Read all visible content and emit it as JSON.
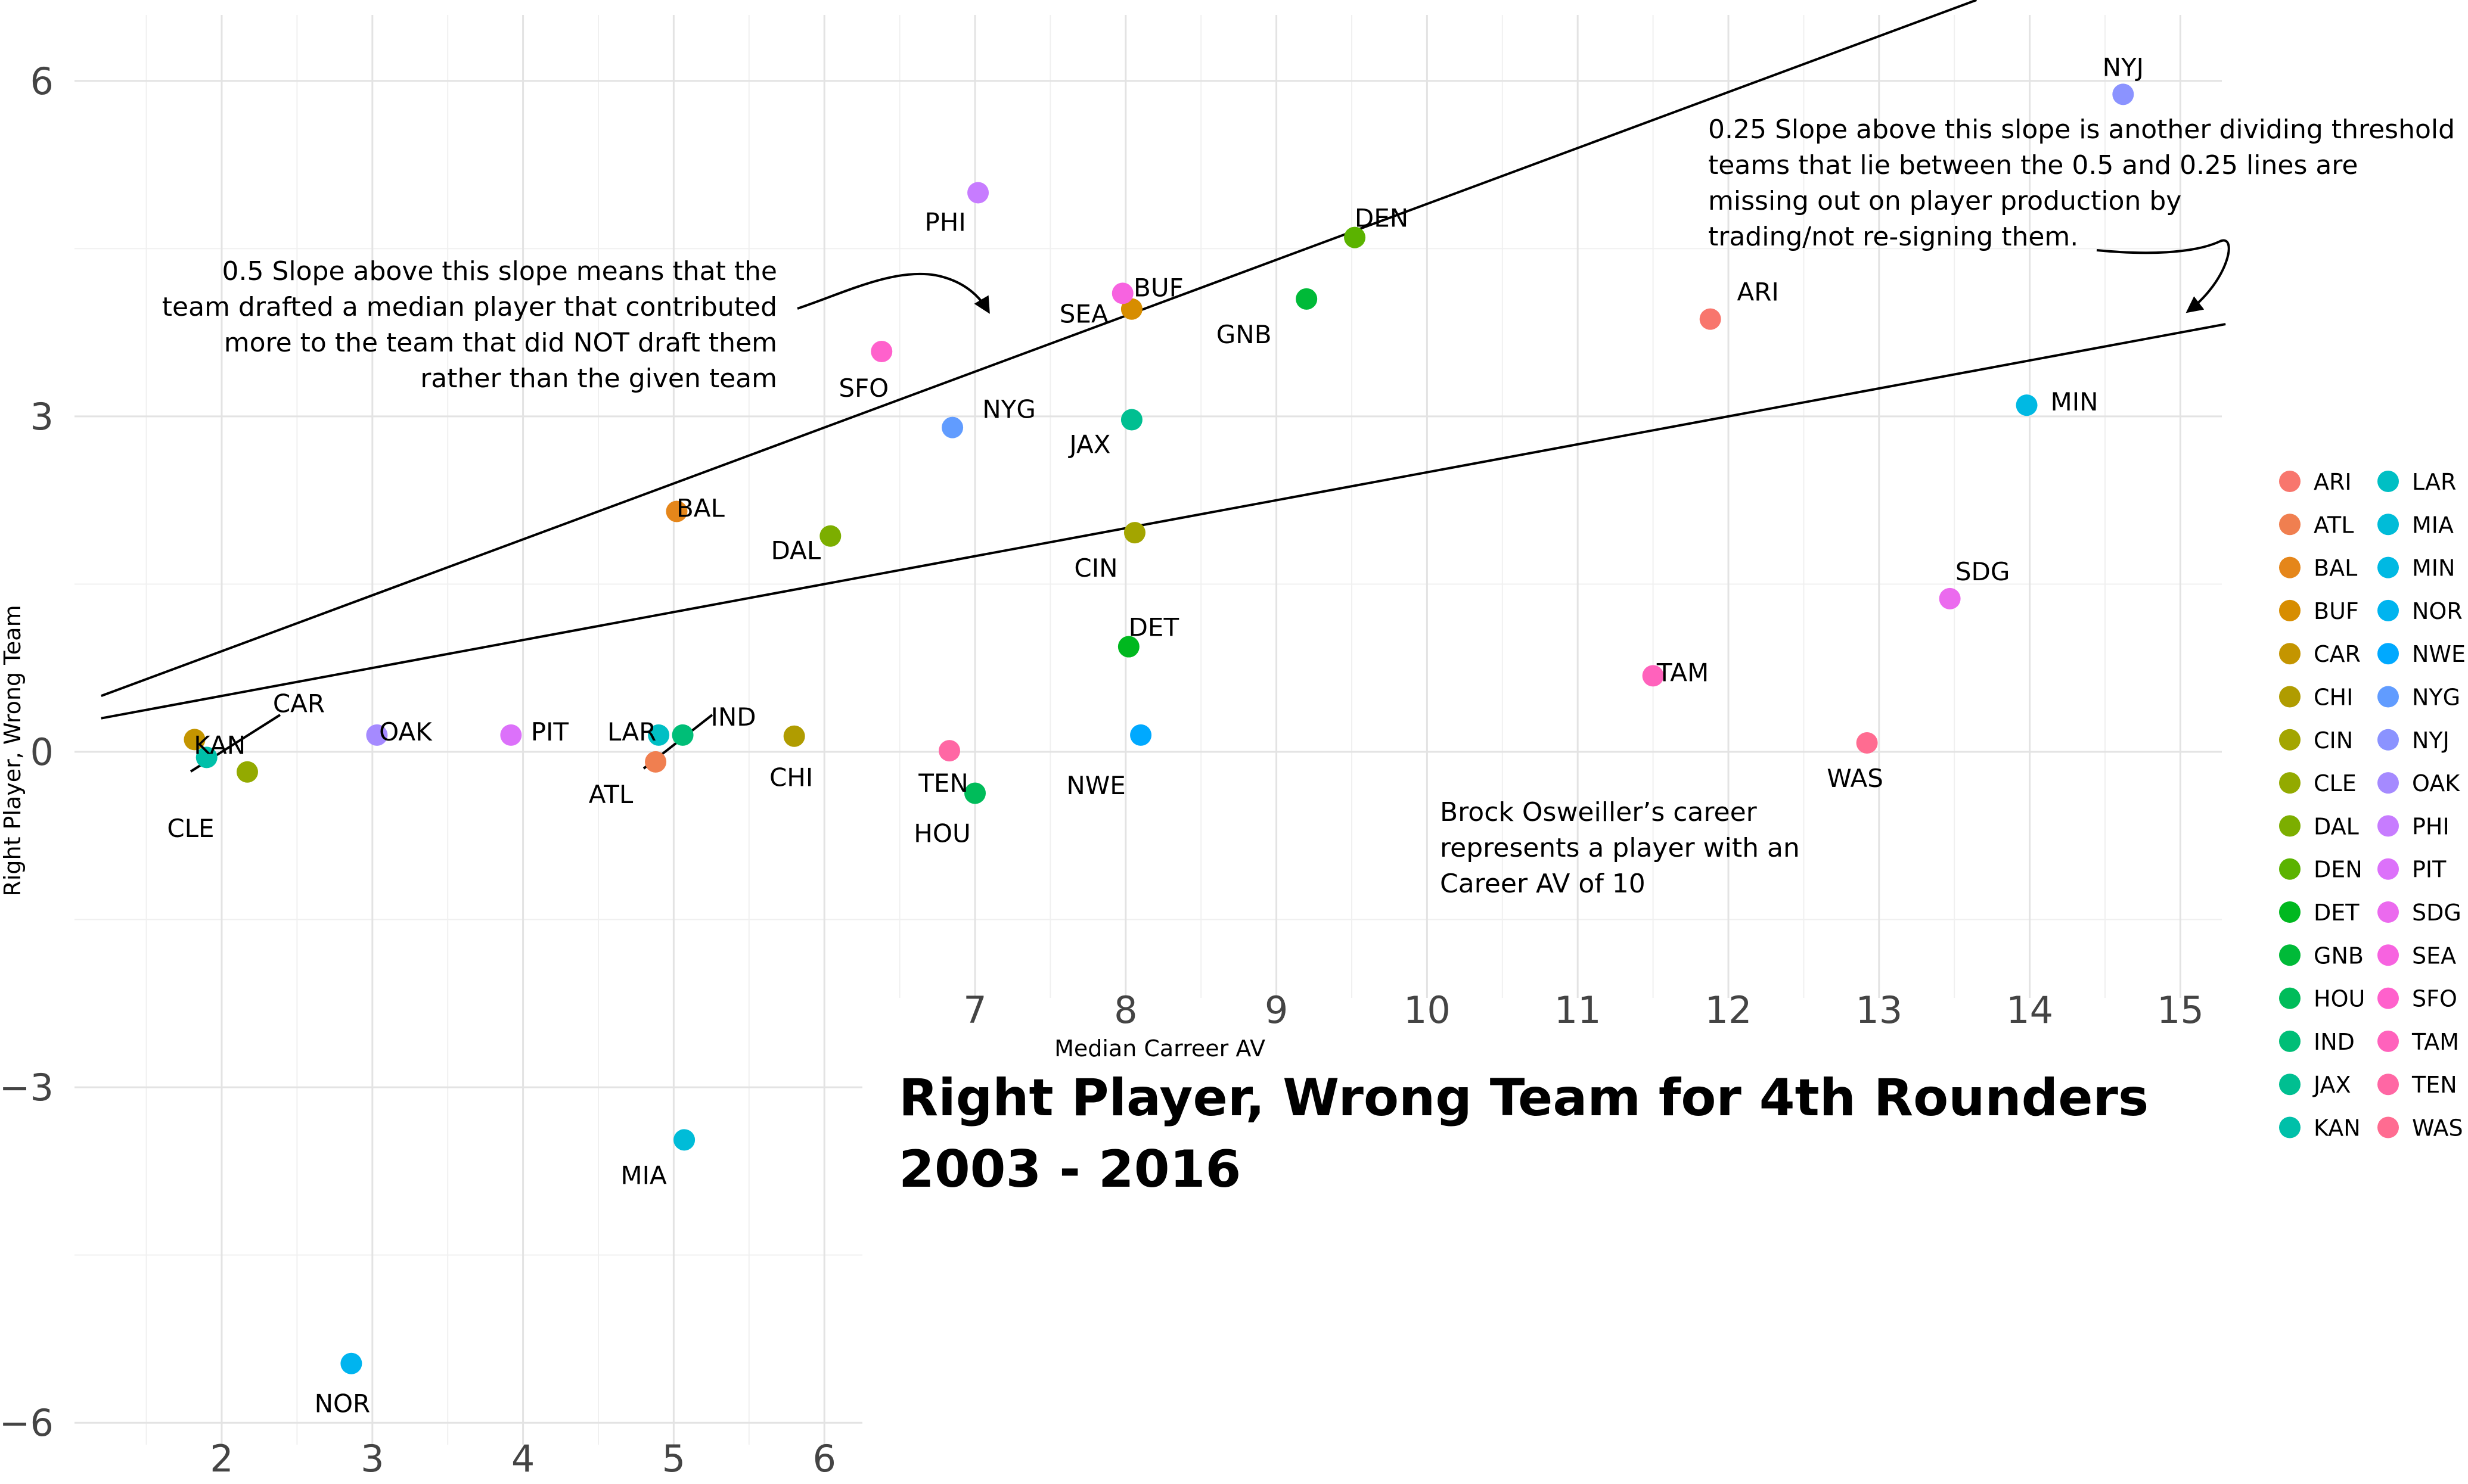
{
  "chart_data": {
    "type": "scatter",
    "title_line1": "Right Player, Wrong Team for 4th Rounders",
    "title_line2": "2003 - 2016",
    "xlabel": "Median Carreer AV",
    "ylabel": "Right Player, Wrong Team",
    "xlim": [
      1.2,
      15.3
    ],
    "ylim": [
      -6.1,
      6.6
    ],
    "x_ticks_left": [
      2,
      3,
      4,
      5,
      6
    ],
    "x_ticks_right": [
      7,
      8,
      9,
      10,
      11,
      12,
      13,
      14,
      15
    ],
    "y_ticks": [
      6,
      3,
      0,
      -3,
      -6
    ],
    "y_tick_labels": [
      "6",
      "3",
      "0",
      "−3",
      "−6"
    ],
    "grid": true,
    "legend_position": "right",
    "reference_lines": [
      {
        "slope": 0.5,
        "intercept": -0.1
      },
      {
        "slope": 0.25,
        "intercept": 0.0
      }
    ],
    "points": [
      {
        "team": "ARI",
        "x": 11.88,
        "y": 3.87,
        "color": "#F8766D"
      },
      {
        "team": "ATL",
        "x": 4.88,
        "y": -0.09,
        "color": "#F07F50"
      },
      {
        "team": "BAL",
        "x": 5.02,
        "y": 2.15,
        "color": "#E5861A"
      },
      {
        "team": "BUF",
        "x": 8.04,
        "y": 3.96,
        "color": "#D78D00"
      },
      {
        "team": "CAR",
        "x": 1.82,
        "y": 0.11,
        "color": "#C49500"
      },
      {
        "team": "CHI",
        "x": 5.8,
        "y": 0.14,
        "color": "#B09C00"
      },
      {
        "team": "CIN",
        "x": 8.06,
        "y": 1.96,
        "color": "#A3A500"
      },
      {
        "team": "CLE",
        "x": 2.17,
        "y": -0.18,
        "color": "#93AA00"
      },
      {
        "team": "DAL",
        "x": 6.04,
        "y": 1.93,
        "color": "#7CAE00"
      },
      {
        "team": "DEN",
        "x": 9.52,
        "y": 4.6,
        "color": "#5BB300"
      },
      {
        "team": "DET",
        "x": 8.02,
        "y": 0.94,
        "color": "#00B81F"
      },
      {
        "team": "GNB",
        "x": 9.2,
        "y": 4.05,
        "color": "#00BA38"
      },
      {
        "team": "HOU",
        "x": 7.0,
        "y": -0.37,
        "color": "#00BC5A"
      },
      {
        "team": "IND",
        "x": 5.06,
        "y": 0.15,
        "color": "#00BE77"
      },
      {
        "team": "JAX",
        "x": 8.04,
        "y": 2.97,
        "color": "#00BF91"
      },
      {
        "team": "KAN",
        "x": 1.9,
        "y": -0.05,
        "color": "#00C0A9"
      },
      {
        "team": "LAR",
        "x": 4.9,
        "y": 0.15,
        "color": "#00BFC4"
      },
      {
        "team": "MIA",
        "x": 5.07,
        "y": -3.47,
        "color": "#00BCD8"
      },
      {
        "team": "MIN",
        "x": 13.98,
        "y": 3.1,
        "color": "#00B9E3"
      },
      {
        "team": "NOR",
        "x": 2.86,
        "y": -5.47,
        "color": "#00B4EF"
      },
      {
        "team": "NWE",
        "x": 8.1,
        "y": 0.15,
        "color": "#00A9FF"
      },
      {
        "team": "NYG",
        "x": 6.85,
        "y": 2.9,
        "color": "#619CFF"
      },
      {
        "team": "NYJ",
        "x": 14.62,
        "y": 5.88,
        "color": "#8B93FF"
      },
      {
        "team": "OAK",
        "x": 3.03,
        "y": 0.15,
        "color": "#A58AFF"
      },
      {
        "team": "PHI",
        "x": 7.02,
        "y": 5.0,
        "color": "#C77CFF"
      },
      {
        "team": "PIT",
        "x": 3.92,
        "y": 0.15,
        "color": "#DC71FA"
      },
      {
        "team": "SDG",
        "x": 13.47,
        "y": 1.37,
        "color": "#EB6AEE"
      },
      {
        "team": "SEA",
        "x": 7.98,
        "y": 4.1,
        "color": "#F763E0"
      },
      {
        "team": "SFO",
        "x": 6.38,
        "y": 3.58,
        "color": "#FF61CC"
      },
      {
        "team": "TAM",
        "x": 11.5,
        "y": 0.68,
        "color": "#FF62BC"
      },
      {
        "team": "TEN",
        "x": 6.83,
        "y": 0.01,
        "color": "#FF67A4"
      },
      {
        "team": "WAS",
        "x": 12.92,
        "y": 0.08,
        "color": "#FF6C91"
      }
    ],
    "annotations": {
      "half_slope": [
        "0.5 Slope above this slope means that the",
        "team drafted a median player that contributed",
        "more to the team that did NOT draft them",
        "rather than the given team"
      ],
      "quarter_slope": [
        "0.25 Slope above this slope is another dividing threshold",
        "teams that lie between the 0.5 and 0.25 lines are",
        "missing out on player production by",
        "trading/not re-signing them."
      ],
      "osweiler": [
        "Brock Osweiller’s career",
        "represents a player with an",
        "Career AV of 10"
      ]
    },
    "legend": [
      {
        "label": "ARI",
        "color": "#F8766D"
      },
      {
        "label": "ATL",
        "color": "#F07F50"
      },
      {
        "label": "BAL",
        "color": "#E5861A"
      },
      {
        "label": "BUF",
        "color": "#D78D00"
      },
      {
        "label": "CAR",
        "color": "#C49500"
      },
      {
        "label": "CHI",
        "color": "#B09C00"
      },
      {
        "label": "CIN",
        "color": "#A3A500"
      },
      {
        "label": "CLE",
        "color": "#93AA00"
      },
      {
        "label": "DAL",
        "color": "#7CAE00"
      },
      {
        "label": "DEN",
        "color": "#5BB300"
      },
      {
        "label": "DET",
        "color": "#00B81F"
      },
      {
        "label": "GNB",
        "color": "#00BA38"
      },
      {
        "label": "HOU",
        "color": "#00BC5A"
      },
      {
        "label": "IND",
        "color": "#00BE77"
      },
      {
        "label": "JAX",
        "color": "#00BF91"
      },
      {
        "label": "KAN",
        "color": "#00C0A9"
      },
      {
        "label": "LAR",
        "color": "#00BFC4"
      },
      {
        "label": "MIA",
        "color": "#00BCD8"
      },
      {
        "label": "MIN",
        "color": "#00B9E3"
      },
      {
        "label": "NOR",
        "color": "#00B4EF"
      },
      {
        "label": "NWE",
        "color": "#00A9FF"
      },
      {
        "label": "NYG",
        "color": "#619CFF"
      },
      {
        "label": "NYJ",
        "color": "#8B93FF"
      },
      {
        "label": "OAK",
        "color": "#A58AFF"
      },
      {
        "label": "PHI",
        "color": "#C77CFF"
      },
      {
        "label": "PIT",
        "color": "#DC71FA"
      },
      {
        "label": "SDG",
        "color": "#EB6AEE"
      },
      {
        "label": "SEA",
        "color": "#F763E0"
      },
      {
        "label": "SFO",
        "color": "#FF61CC"
      },
      {
        "label": "TAM",
        "color": "#FF62BC"
      },
      {
        "label": "TEN",
        "color": "#FF67A4"
      },
      {
        "label": "WAS",
        "color": "#FF6C91"
      }
    ]
  }
}
